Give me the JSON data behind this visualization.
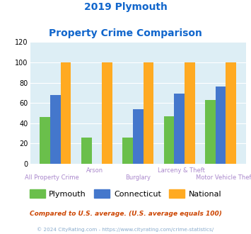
{
  "title_line1": "2019 Plymouth",
  "title_line2": "Property Crime Comparison",
  "categories": [
    "All Property Crime",
    "Arson",
    "Burglary",
    "Larceny & Theft",
    "Motor Vehicle Theft"
  ],
  "plymouth": [
    46,
    26,
    26,
    47,
    63
  ],
  "connecticut": [
    68,
    0,
    54,
    69,
    76
  ],
  "national": [
    100,
    100,
    100,
    100,
    100
  ],
  "bar_colors": {
    "plymouth": "#6abf4b",
    "connecticut": "#4477cc",
    "national": "#ffaa22"
  },
  "ylim": [
    0,
    120
  ],
  "yticks": [
    0,
    20,
    40,
    60,
    80,
    100,
    120
  ],
  "xlabel_color": "#aa88cc",
  "title_color": "#1166cc",
  "legend_labels": [
    "Plymouth",
    "Connecticut",
    "National"
  ],
  "footnote1": "Compared to U.S. average. (U.S. average equals 100)",
  "footnote2": "© 2024 CityRating.com - https://www.cityrating.com/crime-statistics/",
  "footnote1_color": "#cc4400",
  "footnote2_color": "#88aacc",
  "bg_color": "#ddeef5",
  "fig_bg": "#ffffff"
}
